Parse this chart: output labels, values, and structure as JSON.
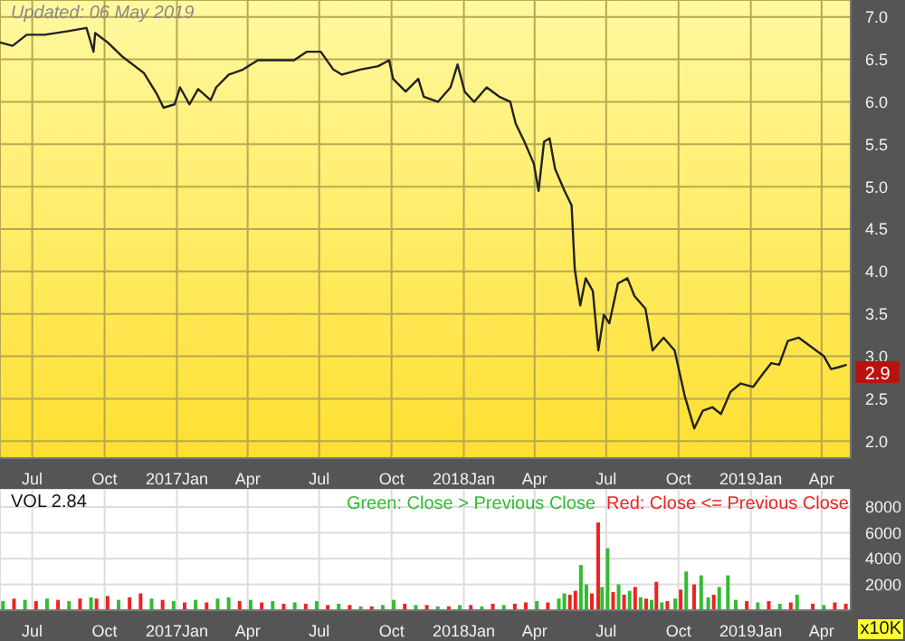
{
  "chart_data": [
    {
      "type": "line",
      "annotations": [
        "Updated: 06 May 2019"
      ],
      "x": [
        "2016-05-21",
        "2016-06-06",
        "2016-06-24",
        "2016-07-17",
        "2016-08-14",
        "2016-09-08",
        "2016-09-17",
        "2016-09-19",
        "2016-10-05",
        "2016-10-24",
        "2016-11-20",
        "2016-12-06",
        "2016-12-15",
        "2016-12-29",
        "2017-01-05",
        "2017-01-17",
        "2017-01-28",
        "2017-02-13",
        "2017-02-20",
        "2017-03-08",
        "2017-03-26",
        "2017-04-14",
        "2017-04-30",
        "2017-05-30",
        "2017-06-15",
        "2017-07-03",
        "2017-07-19",
        "2017-07-30",
        "2017-08-22",
        "2017-09-14",
        "2017-09-28",
        "2017-10-03",
        "2017-10-19",
        "2017-11-04",
        "2017-11-11",
        "2017-11-29",
        "2017-12-15",
        "2017-12-24",
        "2018-01-02",
        "2018-01-14",
        "2018-01-30",
        "2018-02-15",
        "2018-03-01",
        "2018-03-08",
        "2018-03-19",
        "2018-03-31",
        "2018-04-06",
        "2018-04-13",
        "2018-04-20",
        "2018-04-27",
        "2018-05-09",
        "2018-05-18",
        "2018-05-22",
        "2018-05-29",
        "2018-06-05",
        "2018-06-14",
        "2018-06-21",
        "2018-06-28",
        "2018-07-05",
        "2018-07-16",
        "2018-07-28",
        "2018-08-06",
        "2018-08-20",
        "2018-08-29",
        "2018-09-12",
        "2018-09-26",
        "2018-10-09",
        "2018-10-21",
        "2018-11-01",
        "2018-11-13",
        "2018-11-24",
        "2018-12-06",
        "2018-12-19",
        "2019-01-04",
        "2019-01-16",
        "2019-01-27",
        "2019-02-06",
        "2019-02-17",
        "2019-03-03",
        "2019-03-19",
        "2019-04-04",
        "2019-04-13",
        "2019-04-22",
        "2019-05-03"
      ],
      "series": [
        {
          "color": "#222222",
          "axis": "y2",
          "values": [
            6.7,
            6.66,
            6.79,
            6.79,
            6.83,
            6.87,
            6.59,
            6.81,
            6.7,
            6.53,
            6.34,
            6.1,
            5.93,
            5.97,
            6.17,
            5.97,
            6.15,
            6.02,
            6.17,
            6.32,
            6.38,
            6.49,
            6.49,
            6.49,
            6.59,
            6.59,
            6.38,
            6.32,
            6.38,
            6.42,
            6.49,
            6.27,
            6.12,
            6.27,
            6.06,
            6.0,
            6.17,
            6.44,
            6.12,
            6.0,
            6.17,
            6.06,
            6.0,
            5.74,
            5.53,
            5.27,
            4.95,
            5.53,
            5.57,
            5.21,
            4.95,
            4.78,
            4.03,
            3.6,
            3.92,
            3.77,
            3.07,
            3.49,
            3.39,
            3.86,
            3.92,
            3.71,
            3.56,
            3.07,
            3.22,
            3.07,
            2.53,
            2.15,
            2.36,
            2.4,
            2.32,
            2.58,
            2.68,
            2.64,
            2.79,
            2.92,
            2.9,
            3.18,
            3.22,
            3.11,
            3.0,
            2.85,
            2.87,
            2.9
          ],
          "value_labels": [
            null,
            null,
            null,
            null,
            null,
            null,
            null,
            null,
            null,
            null,
            null,
            null,
            null,
            null,
            null,
            null,
            null,
            null,
            null,
            null,
            null,
            null,
            null,
            null,
            null,
            null,
            null,
            null,
            null,
            null,
            null,
            null,
            null,
            null,
            null,
            null,
            null,
            null,
            null,
            null,
            null,
            null,
            null,
            null,
            null,
            null,
            null,
            null,
            null,
            null,
            null,
            null,
            null,
            null,
            null,
            null,
            null,
            null,
            null,
            null,
            null,
            null,
            null,
            null,
            null,
            null,
            null,
            null,
            null,
            null,
            null,
            null,
            null,
            null,
            null,
            null,
            null,
            null,
            null,
            null,
            null,
            null,
            null,
            "2.9"
          ]
        }
      ],
      "xlim": [
        "2016-05-21",
        "2019-05-08"
      ],
      "xticks": [
        {
          "value": "2016-07-01",
          "label": "Jul"
        },
        {
          "value": "2016-10-01",
          "label": "Oct"
        },
        {
          "value": "2017-01-01",
          "label": "2017Jan"
        },
        {
          "value": "2017-04-01",
          "label": "Apr"
        },
        {
          "value": "2017-07-01",
          "label": "Jul"
        },
        {
          "value": "2017-10-01",
          "label": "Oct"
        },
        {
          "value": "2018-01-01",
          "label": "2018Jan"
        },
        {
          "value": "2018-04-01",
          "label": "Apr"
        },
        {
          "value": "2018-07-01",
          "label": "Jul"
        },
        {
          "value": "2018-10-01",
          "label": "Oct"
        },
        {
          "value": "2019-01-01",
          "label": "2019Jan"
        },
        {
          "value": "2019-04-01",
          "label": "Apr"
        }
      ],
      "y2lim": [
        1.8,
        7.2
      ],
      "y2ticks": [
        {
          "value": 2,
          "label": "2.0"
        },
        {
          "value": 2.5,
          "label": "2.5"
        },
        {
          "value": 3,
          "label": "3.0"
        },
        {
          "value": 3.5,
          "label": "3.5"
        },
        {
          "value": 4,
          "label": "4.0"
        },
        {
          "value": 4.5,
          "label": "4.5"
        },
        {
          "value": 5,
          "label": "5.0"
        },
        {
          "value": 5.5,
          "label": "5.5"
        },
        {
          "value": 6,
          "label": "6.0"
        },
        {
          "value": 6.5,
          "label": "6.5"
        },
        {
          "value": 7,
          "label": "7.0"
        }
      ],
      "grid": true
    },
    {
      "type": "bar",
      "stacked": true,
      "annotations": [
        "VOL  2.84"
      ],
      "y2label": "x10K",
      "legend": "top right",
      "x": [
        "2016-05-25",
        "2016-06-08",
        "2016-06-22",
        "2016-07-06",
        "2016-07-20",
        "2016-08-03",
        "2016-08-17",
        "2016-08-31",
        "2016-09-14",
        "2016-09-21",
        "2016-10-05",
        "2016-10-19",
        "2016-11-02",
        "2016-11-16",
        "2016-11-30",
        "2016-12-14",
        "2016-12-28",
        "2017-01-11",
        "2017-01-25",
        "2017-02-08",
        "2017-02-22",
        "2017-03-08",
        "2017-03-22",
        "2017-04-05",
        "2017-04-19",
        "2017-05-03",
        "2017-05-17",
        "2017-05-31",
        "2017-06-14",
        "2017-06-28",
        "2017-07-12",
        "2017-07-26",
        "2017-08-09",
        "2017-08-23",
        "2017-09-06",
        "2017-09-20",
        "2017-10-04",
        "2017-10-18",
        "2017-11-01",
        "2017-11-15",
        "2017-11-29",
        "2017-12-13",
        "2017-12-27",
        "2018-01-10",
        "2018-01-24",
        "2018-02-07",
        "2018-02-21",
        "2018-03-07",
        "2018-03-21",
        "2018-04-04",
        "2018-04-18",
        "2018-05-02",
        "2018-05-09",
        "2018-05-16",
        "2018-05-23",
        "2018-05-30",
        "2018-06-06",
        "2018-06-13",
        "2018-06-21",
        "2018-06-26",
        "2018-07-03",
        "2018-07-10",
        "2018-07-17",
        "2018-07-24",
        "2018-07-31",
        "2018-08-07",
        "2018-08-14",
        "2018-08-21",
        "2018-08-28",
        "2018-09-03",
        "2018-09-10",
        "2018-09-17",
        "2018-09-27",
        "2018-10-04",
        "2018-10-11",
        "2018-10-21",
        "2018-10-30",
        "2018-11-08",
        "2018-11-15",
        "2018-11-22",
        "2018-12-03",
        "2018-12-13",
        "2018-12-27",
        "2019-01-10",
        "2019-01-24",
        "2019-02-07",
        "2019-02-21",
        "2019-03-01",
        "2019-03-21",
        "2019-04-04",
        "2019-04-18",
        "2019-05-02"
      ],
      "series": [
        {
          "name": "Green: Close > Previous Close",
          "color": "#33bb33",
          "axis": "y2",
          "values": [
            700,
            null,
            800,
            null,
            900,
            null,
            700,
            null,
            1000,
            null,
            null,
            800,
            null,
            null,
            900,
            null,
            700,
            null,
            800,
            null,
            900,
            1000,
            null,
            800,
            null,
            700,
            null,
            600,
            null,
            700,
            null,
            500,
            null,
            300,
            null,
            400,
            800,
            null,
            400,
            null,
            300,
            null,
            400,
            null,
            300,
            null,
            400,
            null,
            null,
            700,
            null,
            900,
            1300,
            null,
            null,
            3500,
            2000,
            null,
            null,
            1800,
            4800,
            null,
            2000,
            null,
            1500,
            null,
            1000,
            null,
            800,
            null,
            600,
            null,
            900,
            null,
            3000,
            null,
            2700,
            1000,
            null,
            1800,
            2700,
            800,
            null,
            600,
            null,
            500,
            null,
            1200,
            null,
            400,
            null,
            null
          ]
        },
        {
          "name": "Red: Close <= Previous Close",
          "color": "#ee2222",
          "axis": "y2",
          "values": [
            null,
            900,
            null,
            700,
            null,
            800,
            null,
            900,
            null,
            900,
            1100,
            null,
            1000,
            1300,
            null,
            800,
            null,
            600,
            null,
            600,
            null,
            null,
            700,
            null,
            600,
            null,
            500,
            null,
            500,
            null,
            400,
            null,
            400,
            null,
            300,
            null,
            null,
            500,
            null,
            400,
            null,
            300,
            null,
            400,
            null,
            500,
            null,
            500,
            600,
            null,
            600,
            null,
            null,
            1200,
            1500,
            null,
            null,
            1300,
            6800,
            null,
            null,
            1400,
            null,
            1200,
            null,
            1800,
            null,
            900,
            null,
            2200,
            null,
            700,
            null,
            1600,
            null,
            2000,
            null,
            null,
            1200,
            null,
            null,
            null,
            700,
            null,
            700,
            null,
            600,
            null,
            500,
            null,
            600,
            500
          ]
        }
      ],
      "xlim": [
        "2016-05-21",
        "2019-05-08"
      ],
      "xticks": [
        {
          "value": "2016-07-01",
          "label": "Jul"
        },
        {
          "value": "2016-10-01",
          "label": "Oct"
        },
        {
          "value": "2017-01-01",
          "label": "2017Jan"
        },
        {
          "value": "2017-04-01",
          "label": "Apr"
        },
        {
          "value": "2017-07-01",
          "label": "Jul"
        },
        {
          "value": "2017-10-01",
          "label": "Oct"
        },
        {
          "value": "2018-01-01",
          "label": "2018Jan"
        },
        {
          "value": "2018-04-01",
          "label": "Apr"
        },
        {
          "value": "2018-07-01",
          "label": "Jul"
        },
        {
          "value": "2018-10-01",
          "label": "Oct"
        },
        {
          "value": "2019-01-01",
          "label": "2019Jan"
        },
        {
          "value": "2019-04-01",
          "label": "Apr"
        }
      ],
      "y2lim": [
        0,
        9400
      ],
      "y2ticks": [
        2000,
        4000,
        6000,
        8000
      ],
      "grid": true
    }
  ]
}
